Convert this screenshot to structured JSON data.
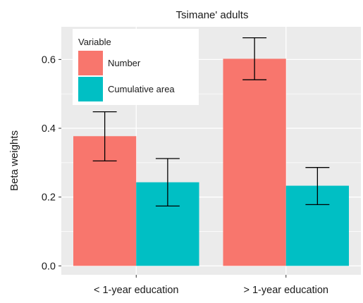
{
  "chart_data": {
    "type": "bar",
    "title": "Tsimane' adults",
    "xlabel": "",
    "ylabel": "Beta weights",
    "categories": [
      "< 1-year education",
      "> 1-year education"
    ],
    "series": [
      {
        "name": "Number",
        "values": [
          0.377,
          0.602
        ],
        "error_low": [
          0.305,
          0.541
        ],
        "error_high": [
          0.448,
          0.663
        ]
      },
      {
        "name": "Cumulative area",
        "values": [
          0.243,
          0.233
        ],
        "error_low": [
          0.174,
          0.178
        ],
        "error_high": [
          0.312,
          0.286
        ]
      }
    ],
    "ylim": [
      -0.026,
      0.695
    ],
    "yticks": [
      "0.0",
      "0.2",
      "0.4",
      "0.6"
    ],
    "legend": {
      "title": "Variable",
      "position": "top-left"
    },
    "grid": true,
    "colors": {
      "Number": "#F8766D",
      "Cumulative area": "#00BFC4",
      "panel": "#EBEBEB",
      "grid": "#FFFFFF"
    }
  }
}
